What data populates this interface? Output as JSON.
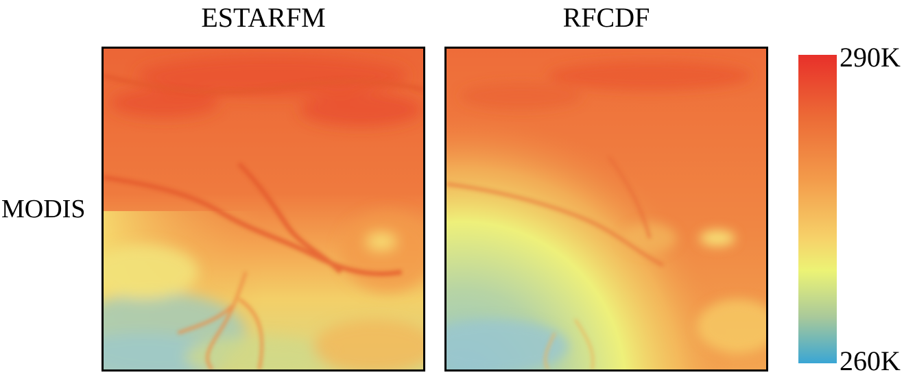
{
  "columns": [
    {
      "title": "ESTARFM"
    },
    {
      "title": "RFCDF"
    }
  ],
  "row_label": "MODIS",
  "colorbar": {
    "max_label": "290K",
    "min_label": "260K",
    "colors": [
      "#e8302a",
      "#ec6a36",
      "#f39a4a",
      "#f6d36a",
      "#ecf375",
      "#a9c99a",
      "#3aa6d4"
    ]
  }
}
